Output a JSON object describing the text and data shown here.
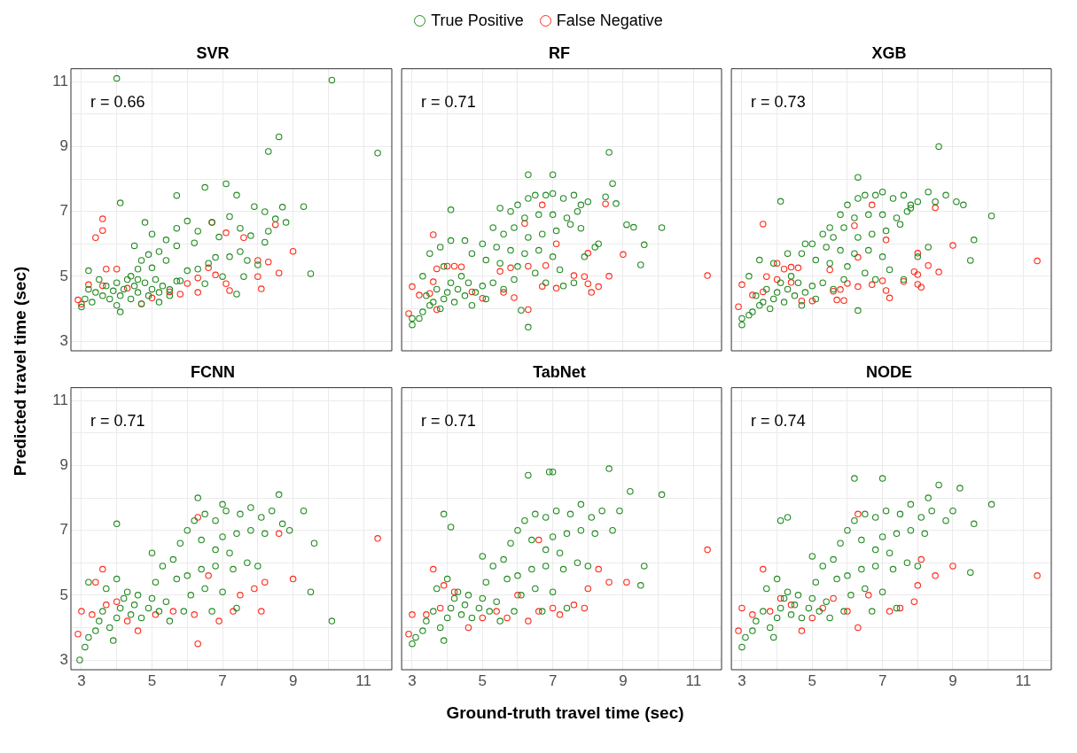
{
  "chart_data": [
    {
      "type": "scatter",
      "title": "SVR",
      "ylabel": "Predicted travel time (sec)",
      "legend": "top",
      "tick_labels": "y",
      "grid": true,
      "marker": "circle",
      "annotations": [
        "r = 0.66"
      ],
      "xlim": [
        2.7,
        11.8
      ],
      "ylim": [
        2.7,
        11.4
      ],
      "xticks": [
        3,
        {
          "value": 4,
          "label": null
        },
        5,
        {
          "value": 6,
          "label": null
        },
        7,
        {
          "value": 8,
          "label": null
        },
        9,
        {
          "value": 10,
          "label": null
        },
        11
      ],
      "yticks": [
        3,
        {
          "value": 4,
          "label": null
        },
        5,
        {
          "value": 6,
          "label": null
        },
        7,
        {
          "value": 8,
          "label": null
        },
        9,
        {
          "value": 10,
          "label": null
        },
        11
      ],
      "series": [
        {
          "name": "True Positive",
          "color": "#228b22",
          "x": [
            4.0,
            10.1,
            8.6,
            8.3,
            11.4,
            4.1,
            5.7,
            6.5,
            7.1,
            7.4,
            7.9,
            8.7,
            9.3,
            8.2,
            8.5,
            8.8,
            8.3,
            8.2,
            7.8,
            7.5,
            7.2,
            7.7,
            8.0,
            7.6,
            7.4,
            9.5,
            6.8,
            6.6,
            6.3,
            6.0,
            5.8,
            5.5,
            5.2,
            6.5,
            7.0,
            4.8,
            5.0,
            5.4,
            5.7,
            6.0,
            6.3,
            6.7,
            6.9,
            7.2,
            7.5,
            6.2,
            5.7,
            4.5,
            4.7,
            4.9,
            5.2,
            5.4,
            5.0,
            4.6,
            3.2,
            3.0,
            3.1,
            3.3,
            3.4,
            3.6,
            3.7,
            3.8,
            3.9,
            4.0,
            4.1,
            4.2,
            4.3,
            4.4,
            4.5,
            4.6,
            4.7,
            4.8,
            4.9,
            5.0,
            5.1,
            5.2,
            5.3,
            4.1,
            4.4,
            3.5,
            4.0,
            4.6,
            5.5,
            5.7,
            3.2
          ],
          "values": [
            11.1,
            11.05,
            9.3,
            8.85,
            8.8,
            7.26,
            7.49,
            7.74,
            7.85,
            7.5,
            7.15,
            7.13,
            7.15,
            6.99,
            6.77,
            6.66,
            6.39,
            6.05,
            6.25,
            5.76,
            5.6,
            5.49,
            5.35,
            4.99,
            4.45,
            5.08,
            5.58,
            5.4,
            5.22,
            5.17,
            4.86,
            4.59,
            4.5,
            4.77,
            4.99,
            6.66,
            6.3,
            6.12,
            6.48,
            6.7,
            6.39,
            6.66,
            6.21,
            6.84,
            6.48,
            6.03,
            5.94,
            5.94,
            5.49,
            5.67,
            5.76,
            5.49,
            5.26,
            5.22,
            5.17,
            4.05,
            4.3,
            4.2,
            4.5,
            4.4,
            4.7,
            4.3,
            4.55,
            4.8,
            4.4,
            4.6,
            4.9,
            4.3,
            4.7,
            4.5,
            4.15,
            4.8,
            4.4,
            4.6,
            4.9,
            4.2,
            4.7,
            3.9,
            5.0,
            4.9,
            4.1,
            4.9,
            4.4,
            4.85,
            4.6
          ]
        },
        {
          "name": "False Negative",
          "color": "#ff2a1a",
          "x": [
            3.6,
            3.6,
            3.4,
            2.9,
            3.0,
            3.2,
            3.6,
            3.7,
            4.0,
            4.3,
            4.7,
            5.0,
            5.5,
            5.8,
            6.0,
            6.3,
            6.3,
            6.6,
            6.8,
            7.1,
            7.2,
            6.7,
            7.1,
            7.6,
            8.0,
            8.3,
            8.0,
            8.1,
            8.6,
            9.0,
            8.5
          ],
          "values": [
            6.77,
            6.41,
            6.19,
            4.27,
            4.14,
            4.74,
            4.71,
            5.22,
            5.22,
            4.63,
            4.15,
            4.33,
            4.52,
            4.45,
            4.78,
            4.95,
            4.5,
            5.26,
            5.04,
            4.77,
            4.56,
            6.66,
            6.34,
            6.19,
            5.49,
            5.44,
            4.99,
            4.61,
            5.1,
            5.77,
            6.59
          ]
        }
      ]
    },
    {
      "type": "scatter",
      "title": "RF",
      "tick_labels": false,
      "grid": true,
      "marker": "circle",
      "annotations": [
        "r = 0.71"
      ],
      "xlim": [
        2.7,
        11.8
      ],
      "ylim": [
        2.7,
        11.4
      ],
      "xticks": [
        3,
        {
          "value": 4,
          "label": null
        },
        5,
        {
          "value": 6,
          "label": null
        },
        7,
        {
          "value": 8,
          "label": null
        },
        9,
        {
          "value": 10,
          "label": null
        },
        11
      ],
      "yticks": [
        3,
        {
          "value": 4,
          "label": null
        },
        5,
        {
          "value": 6,
          "label": null
        },
        7,
        {
          "value": 8,
          "label": null
        },
        9,
        {
          "value": 10,
          "label": null
        },
        11
      ],
      "series": [
        {
          "name": "True Positive",
          "color": "#228b22",
          "x": [
            8.6,
            6.3,
            7.0,
            8.7,
            4.1,
            10.1,
            9.6,
            9.5,
            9.3,
            9.1,
            8.8,
            8.5,
            8.3,
            7.8,
            6.3,
            6.1,
            6.0,
            6.3,
            6.5,
            6.8,
            7.0,
            7.3,
            7.6,
            7.8,
            8.0,
            6.2,
            6.6,
            7.0,
            7.4,
            7.7,
            5.5,
            5.8,
            5.3,
            5.6,
            5.9,
            6.3,
            6.7,
            7.1,
            7.5,
            5.0,
            5.4,
            5.8,
            6.2,
            6.6,
            7.0,
            4.7,
            5.1,
            5.5,
            6.0,
            6.5,
            7.2,
            7.6,
            7.9,
            8.2,
            6.8,
            7.3,
            3.0,
            3.0,
            3.2,
            3.3,
            3.5,
            3.4,
            3.6,
            3.8,
            3.9,
            4.0,
            4.2,
            4.3,
            4.5,
            4.6,
            4.7,
            4.8,
            5.0,
            5.1,
            5.3,
            3.7,
            4.1,
            4.4,
            3.3,
            3.5,
            3.8,
            4.1,
            4.5,
            3.9,
            5.6,
            5.9
          ],
          "values": [
            8.82,
            8.13,
            8.13,
            7.86,
            7.05,
            6.5,
            5.97,
            5.35,
            6.51,
            6.59,
            7.24,
            7.45,
            6.0,
            6.48,
            3.43,
            3.95,
            7.2,
            7.4,
            7.5,
            7.5,
            7.55,
            7.4,
            7.5,
            7.2,
            7.3,
            6.8,
            6.9,
            6.9,
            6.8,
            7.0,
            7.1,
            7.0,
            6.5,
            6.3,
            6.5,
            6.2,
            6.3,
            6.4,
            6.6,
            6.0,
            5.9,
            5.8,
            5.7,
            5.8,
            5.6,
            5.7,
            5.5,
            5.4,
            5.3,
            5.1,
            5.2,
            4.8,
            5.6,
            5.9,
            4.8,
            4.7,
            3.5,
            3.7,
            3.7,
            3.9,
            4.1,
            4.4,
            4.2,
            4.0,
            4.3,
            4.5,
            4.2,
            4.6,
            4.4,
            4.8,
            4.1,
            4.5,
            4.7,
            4.3,
            4.8,
            4.6,
            4.8,
            5.0,
            5.0,
            5.7,
            5.9,
            6.1,
            6.1,
            5.3,
            4.6,
            4.9
          ]
        },
        {
          "name": "False Negative",
          "color": "#ff2a1a",
          "x": [
            2.9,
            3.0,
            3.2,
            3.5,
            3.6,
            3.6,
            3.7,
            4.0,
            4.2,
            4.4,
            3.7,
            4.7,
            5.0,
            5.5,
            5.6,
            5.8,
            5.9,
            6.3,
            6.3,
            6.2,
            6.7,
            6.7,
            6.8,
            7.1,
            7.1,
            7.6,
            7.9,
            8.0,
            8.1,
            8.3,
            8.0,
            8.6,
            9.0,
            8.5,
            11.4
          ],
          "values": [
            3.85,
            4.68,
            4.42,
            4.47,
            4.83,
            6.28,
            5.23,
            5.31,
            5.31,
            5.29,
            3.97,
            4.52,
            4.32,
            5.15,
            4.5,
            5.26,
            4.34,
            5.31,
            3.97,
            6.63,
            7.2,
            4.69,
            5.33,
            6.0,
            4.63,
            5.02,
            4.99,
            4.77,
            4.5,
            4.68,
            5.71,
            5.0,
            5.67,
            7.23,
            5.02
          ]
        }
      ]
    },
    {
      "type": "scatter",
      "title": "XGB",
      "tick_labels": false,
      "grid": true,
      "marker": "circle",
      "annotations": [
        "r = 0.73"
      ],
      "xlim": [
        2.7,
        11.8
      ],
      "ylim": [
        2.7,
        11.4
      ],
      "xticks": [
        3,
        {
          "value": 4,
          "label": null
        },
        5,
        {
          "value": 6,
          "label": null
        },
        7,
        {
          "value": 8,
          "label": null
        },
        9,
        {
          "value": 10,
          "label": null
        },
        11
      ],
      "yticks": [
        3,
        {
          "value": 4,
          "label": null
        },
        5,
        {
          "value": 6,
          "label": null
        },
        7,
        {
          "value": 8,
          "label": null
        },
        9,
        {
          "value": 10,
          "label": null
        },
        11
      ],
      "series": [
        {
          "name": "True Positive",
          "color": "#228b22",
          "x": [
            8.6,
            6.3,
            4.1,
            10.1,
            9.6,
            9.5,
            6.3,
            9.3,
            9.1,
            8.8,
            8.5,
            8.3,
            7.8,
            6.0,
            6.3,
            6.5,
            6.8,
            7.0,
            7.3,
            7.6,
            7.8,
            8.0,
            6.2,
            6.6,
            7.0,
            7.4,
            7.7,
            5.5,
            5.8,
            5.3,
            5.6,
            5.9,
            6.3,
            6.7,
            7.1,
            7.5,
            5.0,
            5.4,
            5.8,
            6.2,
            6.6,
            7.0,
            4.7,
            5.1,
            5.5,
            6.0,
            6.5,
            7.2,
            7.6,
            8.0,
            8.3,
            6.8,
            3.0,
            3.0,
            3.2,
            3.3,
            3.5,
            3.4,
            3.6,
            3.8,
            3.9,
            4.0,
            4.2,
            4.3,
            4.5,
            4.6,
            4.7,
            4.8,
            5.0,
            5.1,
            5.3,
            3.7,
            4.1,
            4.4,
            3.2,
            3.5,
            3.9,
            4.3,
            4.8,
            5.6,
            5.9
          ],
          "values": [
            9.0,
            8.05,
            7.31,
            6.86,
            6.12,
            5.49,
            3.94,
            7.2,
            7.3,
            7.5,
            7.3,
            7.6,
            7.1,
            7.2,
            7.4,
            7.5,
            7.5,
            7.6,
            7.4,
            7.5,
            7.2,
            7.3,
            6.8,
            6.9,
            6.9,
            6.8,
            7.0,
            6.5,
            6.9,
            6.3,
            6.2,
            6.5,
            6.2,
            6.3,
            6.4,
            6.6,
            6.0,
            5.9,
            5.8,
            5.7,
            5.8,
            5.6,
            5.7,
            5.5,
            5.4,
            5.3,
            5.1,
            5.2,
            4.9,
            5.6,
            5.9,
            4.9,
            3.5,
            3.7,
            3.8,
            3.9,
            4.1,
            4.4,
            4.2,
            4.0,
            4.3,
            4.5,
            4.2,
            4.6,
            4.4,
            4.8,
            4.1,
            4.5,
            4.7,
            4.3,
            4.8,
            4.6,
            4.8,
            5.0,
            5.0,
            5.5,
            5.4,
            5.7,
            6.0,
            4.6,
            4.9
          ]
        },
        {
          "name": "False Negative",
          "color": "#ff2a1a",
          "x": [
            2.9,
            3.0,
            3.6,
            3.3,
            3.6,
            3.7,
            4.0,
            4.2,
            4.4,
            4.6,
            4.0,
            4.4,
            4.7,
            5.0,
            5.5,
            5.6,
            5.8,
            5.7,
            5.9,
            6.0,
            6.2,
            6.3,
            6.3,
            6.7,
            6.7,
            7.0,
            7.1,
            7.1,
            7.2,
            7.6,
            7.9,
            8.0,
            8.0,
            8.0,
            8.1,
            8.3,
            8.6,
            9.0,
            8.5,
            11.4
          ],
          "values": [
            4.06,
            4.74,
            6.61,
            4.42,
            4.52,
            4.99,
            5.4,
            5.22,
            5.28,
            5.26,
            4.9,
            4.81,
            4.24,
            4.24,
            5.2,
            4.54,
            4.59,
            4.27,
            4.25,
            4.78,
            6.56,
            5.58,
            4.68,
            7.2,
            4.74,
            4.86,
            6.12,
            4.56,
            4.33,
            4.84,
            5.14,
            5.05,
            5.71,
            4.75,
            4.66,
            5.33,
            5.13,
            5.95,
            7.11,
            5.47
          ]
        }
      ]
    },
    {
      "type": "scatter",
      "title": "FCNN",
      "grid": true,
      "marker": "circle",
      "annotations": [
        "r = 0.71"
      ],
      "xlim": [
        2.7,
        11.8
      ],
      "ylim": [
        2.7,
        11.4
      ],
      "xticks": [
        3,
        {
          "value": 4,
          "label": null
        },
        5,
        {
          "value": 6,
          "label": null
        },
        7,
        {
          "value": 8,
          "label": null
        },
        9,
        {
          "value": 10,
          "label": null
        },
        11
      ],
      "yticks": [
        3,
        {
          "value": 4,
          "label": null
        },
        5,
        {
          "value": 6,
          "label": null
        },
        7,
        {
          "value": 8,
          "label": null
        },
        9,
        {
          "value": 10,
          "label": null
        },
        11
      ],
      "series": [
        {
          "name": "True Positive",
          "color": "#228b22",
          "x": [
            4.0,
            2.95,
            10.1,
            9.5,
            9.6,
            9.3,
            8.6,
            6.3,
            7.0,
            3.1,
            3.2,
            3.4,
            3.5,
            3.6,
            3.8,
            3.9,
            4.0,
            4.1,
            4.2,
            4.4,
            4.5,
            4.6,
            4.7,
            4.9,
            5.0,
            5.2,
            5.4,
            5.5,
            3.7,
            4.0,
            4.3,
            3.2,
            5.1,
            5.3,
            5.0,
            5.6,
            5.8,
            6.0,
            6.2,
            6.5,
            6.8,
            7.1,
            7.5,
            7.8,
            8.1,
            8.4,
            7.0,
            7.4,
            7.8,
            8.2,
            6.4,
            6.8,
            7.2,
            5.7,
            6.0,
            6.4,
            6.8,
            7.3,
            7.7,
            6.1,
            6.5,
            7.0,
            7.4,
            6.7,
            5.9,
            8.0,
            8.7,
            8.9
          ],
          "values": [
            7.2,
            3.0,
            4.2,
            5.1,
            6.6,
            7.6,
            8.1,
            8.0,
            7.8,
            3.4,
            3.7,
            3.9,
            4.2,
            4.5,
            4.0,
            3.6,
            4.3,
            4.6,
            4.9,
            4.4,
            4.7,
            5.0,
            4.3,
            4.6,
            4.9,
            4.5,
            4.8,
            4.2,
            5.2,
            5.5,
            5.1,
            5.4,
            5.4,
            5.9,
            6.3,
            6.1,
            6.6,
            7.0,
            7.3,
            7.5,
            7.3,
            7.6,
            7.5,
            7.7,
            7.4,
            7.6,
            6.8,
            6.9,
            7.0,
            6.9,
            6.7,
            6.4,
            6.3,
            5.5,
            5.6,
            5.8,
            5.9,
            5.8,
            6.0,
            5.0,
            5.2,
            5.1,
            4.6,
            4.5,
            4.5,
            5.9,
            7.2,
            7.0
          ]
        },
        {
          "name": "False Negative",
          "color": "#ff2a1a",
          "x": [
            2.9,
            3.0,
            3.3,
            3.4,
            3.6,
            3.7,
            4.0,
            4.3,
            4.6,
            5.1,
            5.6,
            6.2,
            6.3,
            6.3,
            6.6,
            6.9,
            7.3,
            7.5,
            7.9,
            8.1,
            8.2,
            8.6,
            9.0,
            11.4
          ],
          "values": [
            3.8,
            4.5,
            4.4,
            5.4,
            5.8,
            4.7,
            4.8,
            4.2,
            3.9,
            4.4,
            4.5,
            4.4,
            7.4,
            3.5,
            5.6,
            4.2,
            4.5,
            5.0,
            5.2,
            4.5,
            5.4,
            6.9,
            5.5,
            6.75
          ]
        }
      ]
    },
    {
      "type": "scatter",
      "title": "TabNet",
      "xlabel": "Ground-truth travel time (sec)",
      "tick_labels": "x",
      "grid": true,
      "marker": "circle",
      "annotations": [
        "r = 0.71"
      ],
      "xlim": [
        2.7,
        11.8
      ],
      "ylim": [
        2.7,
        11.4
      ],
      "xticks": [
        3,
        {
          "value": 4,
          "label": null
        },
        5,
        {
          "value": 6,
          "label": null
        },
        7,
        {
          "value": 8,
          "label": null
        },
        9,
        {
          "value": 10,
          "label": null
        },
        11
      ],
      "yticks": [
        3,
        {
          "value": 4,
          "label": null
        },
        5,
        {
          "value": 6,
          "label": null
        },
        7,
        {
          "value": 8,
          "label": null
        },
        9,
        {
          "value": 10,
          "label": null
        },
        11
      ],
      "series": [
        {
          "name": "True Positive",
          "color": "#228b22",
          "x": [
            3.9,
            4.1,
            6.3,
            6.9,
            7.0,
            8.6,
            9.2,
            10.1,
            9.6,
            9.5,
            8.9,
            8.7,
            3.0,
            3.1,
            3.3,
            3.4,
            3.6,
            3.8,
            3.9,
            4.0,
            4.1,
            4.2,
            4.4,
            4.5,
            4.6,
            4.7,
            4.9,
            5.0,
            5.2,
            5.4,
            5.5,
            3.7,
            4.0,
            4.3,
            5.1,
            5.3,
            5.0,
            5.6,
            5.8,
            6.0,
            6.2,
            6.5,
            6.8,
            7.1,
            7.5,
            7.8,
            8.1,
            8.4,
            7.0,
            7.4,
            7.8,
            8.2,
            6.4,
            6.8,
            7.2,
            5.7,
            6.0,
            6.4,
            6.8,
            7.3,
            7.7,
            6.1,
            6.5,
            7.0,
            7.4,
            6.7,
            5.9,
            8.0
          ],
          "values": [
            7.5,
            7.1,
            8.7,
            8.8,
            8.8,
            8.9,
            8.2,
            8.1,
            5.9,
            5.3,
            7.6,
            7.0,
            3.5,
            3.7,
            3.9,
            4.2,
            4.5,
            4.0,
            3.6,
            4.3,
            4.6,
            4.9,
            4.4,
            4.7,
            5.0,
            4.3,
            4.6,
            4.9,
            4.5,
            4.8,
            4.2,
            5.2,
            5.5,
            5.1,
            5.4,
            5.9,
            6.2,
            6.1,
            6.6,
            7.0,
            7.3,
            7.5,
            7.4,
            7.6,
            7.5,
            7.8,
            7.4,
            7.6,
            6.8,
            6.9,
            7.0,
            6.9,
            6.7,
            6.4,
            6.3,
            5.5,
            5.6,
            5.8,
            5.9,
            5.8,
            6.0,
            5.0,
            5.2,
            5.1,
            4.6,
            4.5,
            4.5,
            5.9
          ]
        },
        {
          "name": "False Negative",
          "color": "#ff2a1a",
          "x": [
            2.9,
            3.0,
            3.4,
            3.6,
            3.8,
            3.9,
            4.2,
            4.6,
            5.0,
            5.4,
            5.7,
            6.0,
            6.3,
            6.6,
            7.0,
            7.2,
            7.6,
            7.9,
            8.0,
            8.3,
            8.6,
            9.1,
            6.6,
            11.4
          ],
          "values": [
            3.8,
            4.4,
            4.4,
            5.8,
            4.6,
            5.3,
            5.1,
            4.0,
            4.3,
            4.5,
            4.3,
            5.0,
            4.2,
            4.5,
            4.6,
            4.4,
            4.7,
            4.6,
            5.2,
            5.8,
            5.4,
            5.4,
            6.7,
            6.4
          ]
        }
      ]
    },
    {
      "type": "scatter",
      "title": "NODE",
      "tick_labels": "x",
      "grid": true,
      "marker": "circle",
      "annotations": [
        "r = 0.74"
      ],
      "xlim": [
        2.7,
        11.8
      ],
      "ylim": [
        2.7,
        11.4
      ],
      "xticks": [
        3,
        {
          "value": 4,
          "label": null
        },
        5,
        {
          "value": 6,
          "label": null
        },
        7,
        {
          "value": 8,
          "label": null
        },
        9,
        {
          "value": 10,
          "label": null
        },
        11
      ],
      "yticks": [
        3,
        {
          "value": 4,
          "label": null
        },
        5,
        {
          "value": 6,
          "label": null
        },
        7,
        {
          "value": 8,
          "label": null
        },
        9,
        {
          "value": 10,
          "label": null
        },
        11
      ],
      "series": [
        {
          "name": "True Positive",
          "color": "#228b22",
          "x": [
            4.1,
            4.3,
            6.2,
            7.0,
            8.6,
            9.2,
            10.1,
            9.6,
            9.5,
            8.3,
            3.0,
            3.1,
            3.3,
            3.4,
            3.6,
            3.8,
            3.9,
            4.0,
            4.1,
            4.2,
            4.4,
            4.5,
            4.6,
            4.7,
            4.9,
            5.0,
            5.2,
            5.4,
            5.5,
            3.7,
            4.0,
            4.3,
            5.1,
            5.3,
            5.0,
            5.6,
            5.8,
            6.0,
            6.2,
            6.5,
            6.8,
            7.1,
            7.5,
            7.8,
            8.1,
            8.4,
            7.0,
            7.4,
            7.8,
            8.2,
            6.4,
            6.8,
            7.2,
            5.7,
            6.0,
            6.4,
            6.8,
            7.3,
            7.7,
            6.1,
            6.5,
            7.0,
            7.4,
            6.7,
            5.9,
            8.0,
            8.8,
            9.0
          ],
          "values": [
            7.3,
            7.4,
            8.6,
            8.6,
            8.4,
            8.3,
            7.8,
            7.2,
            5.7,
            8.0,
            3.4,
            3.7,
            3.9,
            4.2,
            4.5,
            4.0,
            3.7,
            4.3,
            4.6,
            4.9,
            4.4,
            4.7,
            5.0,
            4.3,
            4.6,
            4.9,
            4.5,
            4.8,
            4.3,
            5.2,
            5.5,
            5.1,
            5.4,
            5.9,
            6.2,
            6.1,
            6.6,
            7.0,
            7.3,
            7.5,
            7.4,
            7.6,
            7.5,
            7.8,
            7.4,
            7.6,
            6.8,
            6.9,
            7.0,
            6.9,
            6.7,
            6.4,
            6.3,
            5.5,
            5.6,
            5.8,
            5.9,
            5.8,
            6.0,
            5.0,
            5.2,
            5.1,
            4.6,
            4.5,
            4.5,
            5.9,
            7.3,
            7.6
          ]
        },
        {
          "name": "False Negative",
          "color": "#ff2a1a",
          "x": [
            2.9,
            3.0,
            3.3,
            3.6,
            3.8,
            4.1,
            4.4,
            4.7,
            5.0,
            5.3,
            5.6,
            6.0,
            6.3,
            6.3,
            6.6,
            7.2,
            7.5,
            7.9,
            8.0,
            8.1,
            8.5,
            9.0,
            11.4
          ],
          "values": [
            3.9,
            4.6,
            4.4,
            5.8,
            4.5,
            4.9,
            4.7,
            3.9,
            4.3,
            4.6,
            4.9,
            4.5,
            4.0,
            7.5,
            5.0,
            4.5,
            4.6,
            4.8,
            5.3,
            6.1,
            5.6,
            5.9,
            5.6
          ]
        }
      ]
    }
  ]
}
